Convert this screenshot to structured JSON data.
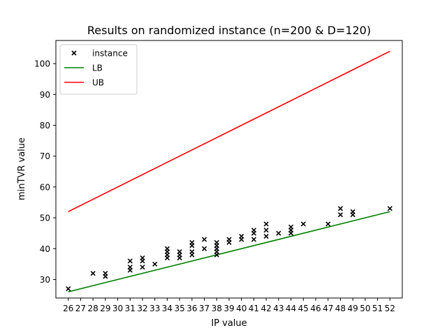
{
  "chart_data": {
    "type": "scatter",
    "title": "Results on randomized instance (n=200 & D=120)",
    "xlabel": "IP value",
    "ylabel": "minTVR value",
    "xlim": [
      25,
      53
    ],
    "ylim": [
      24,
      107.5
    ],
    "xticks": [
      26,
      27,
      28,
      29,
      30,
      31,
      32,
      33,
      34,
      35,
      36,
      37,
      38,
      39,
      40,
      41,
      42,
      43,
      44,
      45,
      46,
      47,
      48,
      49,
      50,
      51,
      52
    ],
    "yticks": [
      30,
      40,
      50,
      60,
      70,
      80,
      90,
      100
    ],
    "grid": false,
    "legend_position": "top-left",
    "series": [
      {
        "name": "instance",
        "kind": "scatter",
        "marker": "x",
        "color": "#000000",
        "points": [
          [
            26,
            27
          ],
          [
            28,
            32
          ],
          [
            29,
            31
          ],
          [
            29,
            32
          ],
          [
            31,
            33
          ],
          [
            31,
            34
          ],
          [
            31,
            36
          ],
          [
            32,
            34
          ],
          [
            32,
            36
          ],
          [
            32,
            37
          ],
          [
            33,
            35
          ],
          [
            34,
            37
          ],
          [
            34,
            38
          ],
          [
            34,
            39
          ],
          [
            34,
            40
          ],
          [
            35,
            37
          ],
          [
            35,
            38
          ],
          [
            35,
            39
          ],
          [
            36,
            38
          ],
          [
            36,
            39
          ],
          [
            36,
            41
          ],
          [
            36,
            42
          ],
          [
            37,
            40
          ],
          [
            37,
            43
          ],
          [
            38,
            38
          ],
          [
            38,
            39
          ],
          [
            38,
            40
          ],
          [
            38,
            41
          ],
          [
            38,
            42
          ],
          [
            39,
            42
          ],
          [
            39,
            43
          ],
          [
            40,
            43
          ],
          [
            40,
            44
          ],
          [
            41,
            43
          ],
          [
            41,
            45
          ],
          [
            41,
            46
          ],
          [
            42,
            44
          ],
          [
            42,
            46
          ],
          [
            42,
            48
          ],
          [
            43,
            45
          ],
          [
            44,
            45
          ],
          [
            44,
            46
          ],
          [
            44,
            47
          ],
          [
            45,
            48
          ],
          [
            47,
            48
          ],
          [
            48,
            51
          ],
          [
            48,
            53
          ],
          [
            49,
            51
          ],
          [
            49,
            52
          ],
          [
            52,
            53
          ]
        ]
      },
      {
        "name": "LB",
        "kind": "line",
        "color": "#008000",
        "x": [
          26,
          52
        ],
        "y": [
          26,
          52
        ]
      },
      {
        "name": "UB",
        "kind": "line",
        "color": "#ff0000",
        "x": [
          26,
          52
        ],
        "y": [
          52,
          104
        ]
      }
    ]
  }
}
